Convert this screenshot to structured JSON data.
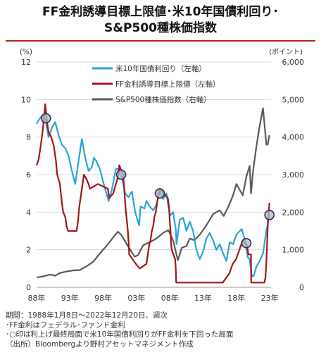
{
  "title_lines": [
    "FF金利誘導目標上限値･米10年国債利回り･",
    "S&P500種株価指数"
  ],
  "chart_data": {
    "type": "line",
    "left_axis": {
      "unit": "(%)",
      "ylim": [
        0,
        12
      ],
      "ticks": [
        "0",
        "2",
        "4",
        "6",
        "8",
        "10",
        "12"
      ]
    },
    "right_axis": {
      "unit": "(ポイント)",
      "ylim": [
        0,
        6000
      ],
      "ticks": [
        "0",
        "1,000",
        "2,000",
        "3,000",
        "4,000",
        "5,000",
        "6,000"
      ]
    },
    "x_range": [
      1988.0,
      2023.2
    ],
    "x_ticks": [
      {
        "x": 1988,
        "label": "88年"
      },
      {
        "x": 1993,
        "label": "93年"
      },
      {
        "x": 1998,
        "label": "98年"
      },
      {
        "x": 2003,
        "label": "03年"
      },
      {
        "x": 2008,
        "label": "08年"
      },
      {
        "x": 2013,
        "label": "13年"
      },
      {
        "x": 2018,
        "label": "18年"
      },
      {
        "x": 2023,
        "label": "23年"
      }
    ],
    "grid": true,
    "legend": "top-center",
    "series": [
      {
        "name": "米10年国債利回り（左軸）",
        "axis": "left",
        "color": "#29a3d6",
        "x": [
          1988.0,
          1988.5,
          1989.0,
          1989.4,
          1989.8,
          1990.3,
          1990.8,
          1991.3,
          1991.8,
          1992.3,
          1992.8,
          1993.3,
          1993.8,
          1994.2,
          1994.8,
          1995.3,
          1995.8,
          1996.3,
          1996.6,
          1997.0,
          1997.5,
          1998.0,
          1998.8,
          1999.3,
          1999.9,
          2000.3,
          2000.9,
          2001.3,
          2001.8,
          2002.3,
          2002.8,
          2003.4,
          2003.6,
          2004.2,
          2004.5,
          2005.0,
          2005.5,
          2006.0,
          2006.5,
          2007.0,
          2007.5,
          2008.0,
          2008.5,
          2008.9,
          2009.0,
          2009.5,
          2010.0,
          2010.5,
          2011.0,
          2011.5,
          2012.0,
          2012.5,
          2013.0,
          2013.5,
          2014.0,
          2014.5,
          2015.0,
          2015.5,
          2016.0,
          2016.5,
          2017.0,
          2017.5,
          2018.0,
          2018.8,
          2019.3,
          2019.7,
          2020.0,
          2020.3,
          2020.6,
          2021.0,
          2021.5,
          2022.0,
          2022.5,
          2022.96
        ],
        "values": [
          8.7,
          9.0,
          9.2,
          8.8,
          8.0,
          8.5,
          8.8,
          8.1,
          7.6,
          7.4,
          7.0,
          6.2,
          5.5,
          6.5,
          7.9,
          6.9,
          6.2,
          6.4,
          6.9,
          6.7,
          6.3,
          5.6,
          4.6,
          5.2,
          6.3,
          6.3,
          5.7,
          5.0,
          4.8,
          5.1,
          4.0,
          3.3,
          4.3,
          4.2,
          4.6,
          4.3,
          4.1,
          4.4,
          5.1,
          4.7,
          5.0,
          3.8,
          4.0,
          3.1,
          2.3,
          3.6,
          3.7,
          3.0,
          3.5,
          3.0,
          2.0,
          1.5,
          1.9,
          2.6,
          2.9,
          2.5,
          2.0,
          2.3,
          1.8,
          1.4,
          2.4,
          2.3,
          2.8,
          3.1,
          2.5,
          1.6,
          1.5,
          0.6,
          0.6,
          1.1,
          1.4,
          1.8,
          3.0,
          3.85
        ]
      },
      {
        "name": "FF金利誘導目標上限値（左軸）",
        "axis": "left",
        "color": "#a31515",
        "x": [
          1988.0,
          1988.3,
          1988.6,
          1988.9,
          1989.1,
          1989.3,
          1989.5,
          1989.8,
          1990.2,
          1990.6,
          1990.9,
          1991.1,
          1991.3,
          1991.5,
          1991.8,
          1992.0,
          1992.3,
          1992.5,
          1992.7,
          1994.0,
          1994.2,
          1994.4,
          1994.6,
          1994.9,
          1995.1,
          1995.5,
          1995.8,
          1996.0,
          1997.2,
          1998.7,
          1998.8,
          1998.9,
          1999.5,
          1999.7,
          1999.9,
          2000.1,
          2000.3,
          2000.4,
          2001.0,
          2001.1,
          2001.2,
          2001.4,
          2001.5,
          2001.7,
          2001.8,
          2001.9,
          2002.9,
          2003.5,
          2004.5,
          2004.7,
          2004.9,
          2005.1,
          2005.3,
          2005.5,
          2005.7,
          2005.9,
          2006.1,
          2006.3,
          2006.5,
          2007.7,
          2007.8,
          2007.9,
          2008.0,
          2008.1,
          2008.2,
          2008.3,
          2008.8,
          2008.9,
          2008.96,
          2015.96,
          2016.96,
          2017.2,
          2017.45,
          2017.96,
          2018.2,
          2018.45,
          2018.7,
          2018.96,
          2019.55,
          2019.7,
          2019.8,
          2020.2,
          2020.22,
          2022.2,
          2022.35,
          2022.45,
          2022.55,
          2022.7,
          2022.85,
          2022.96
        ],
        "values": [
          6.5,
          6.8,
          7.5,
          8.3,
          9.0,
          9.75,
          9.0,
          8.25,
          8.0,
          7.5,
          6.75,
          6.0,
          5.75,
          5.5,
          4.5,
          4.0,
          3.75,
          3.25,
          3.0,
          3.0,
          3.5,
          4.25,
          4.75,
          5.5,
          6.0,
          5.75,
          5.5,
          5.25,
          5.5,
          5.25,
          5.0,
          4.75,
          5.0,
          5.25,
          5.5,
          5.75,
          6.0,
          6.5,
          6.0,
          5.5,
          5.0,
          4.0,
          3.75,
          3.0,
          2.5,
          1.75,
          1.25,
          1.0,
          1.25,
          1.75,
          2.25,
          2.5,
          3.0,
          3.25,
          3.75,
          4.0,
          4.5,
          5.0,
          5.25,
          4.75,
          4.5,
          4.25,
          3.5,
          3.0,
          2.25,
          2.0,
          1.5,
          1.0,
          0.25,
          0.25,
          0.75,
          1.0,
          1.25,
          1.5,
          1.75,
          2.0,
          2.25,
          2.5,
          2.25,
          2.0,
          1.75,
          1.75,
          0.25,
          0.25,
          0.5,
          1.0,
          1.75,
          3.25,
          4.0,
          4.5
        ]
      },
      {
        "name": "S&P500種株価指数（右軸）",
        "axis": "right",
        "color": "#595959",
        "x": [
          1988.0,
          1989.0,
          1990.0,
          1990.8,
          1991.5,
          1992.5,
          1993.5,
          1994.5,
          1995.5,
          1996.5,
          1997.5,
          1998.5,
          1999.5,
          2000.2,
          2000.7,
          2001.7,
          2002.7,
          2003.2,
          2004.0,
          2005.0,
          2006.0,
          2007.0,
          2007.8,
          2008.5,
          2009.2,
          2009.8,
          2010.5,
          2011.0,
          2011.7,
          2012.5,
          2013.5,
          2014.5,
          2015.5,
          2016.1,
          2016.8,
          2017.5,
          2018.0,
          2018.96,
          2019.5,
          2020.0,
          2020.2,
          2020.5,
          2021.0,
          2021.5,
          2022.0,
          2022.5,
          2022.7,
          2022.96
        ],
        "values": [
          260,
          290,
          340,
          310,
          380,
          420,
          450,
          460,
          560,
          680,
          900,
          1100,
          1330,
          1480,
          1400,
          1100,
          820,
          850,
          1120,
          1200,
          1300,
          1450,
          1520,
          1250,
          720,
          1050,
          1100,
          1300,
          1250,
          1400,
          1650,
          1950,
          2050,
          1900,
          2150,
          2450,
          2750,
          2450,
          2950,
          3230,
          2500,
          3100,
          3750,
          4300,
          4770,
          3800,
          3800,
          4050
        ]
      }
    ],
    "markers": [
      {
        "x": 1989.4,
        "value": 9.0
      },
      {
        "x": 2000.7,
        "value": 6.0
      },
      {
        "x": 2006.5,
        "value": 5.0
      },
      {
        "x": 2019.5,
        "value": 2.35
      },
      {
        "x": 2022.96,
        "value": 3.85
      }
    ]
  },
  "notes": [
    "期間：1988年1月8日～2022年12月20日、週次",
    "･FF金利はフェデラル･ファンド金利",
    "･○印は利上げ最終局面で米10年国債利回りがFF金利を下回った局面",
    "（出所）Bloombergより野村アセットマネジメント作成"
  ]
}
